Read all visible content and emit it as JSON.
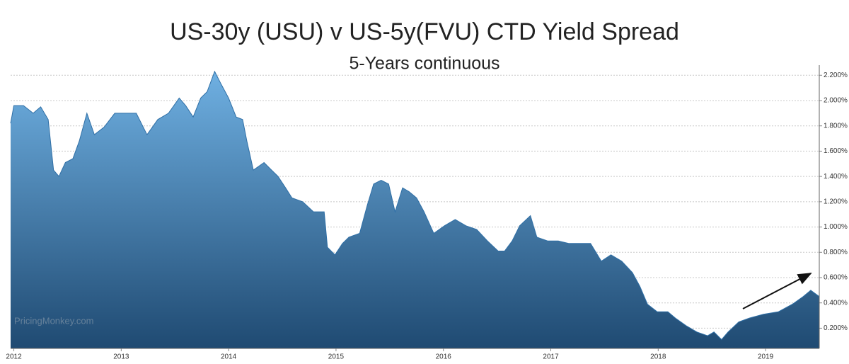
{
  "chart_data": {
    "type": "area",
    "title": "US-30y (USU) v US-5y(FVU) CTD Yield Spread",
    "subtitle": "5-Years continuous",
    "watermark": "PricingMonkey.com",
    "color": "#2f6fa6",
    "grid": true,
    "x": [
      2011.97,
      2012.0,
      2012.09,
      2012.18,
      2012.25,
      2012.32,
      2012.37,
      2012.42,
      2012.48,
      2012.55,
      2012.61,
      2012.68,
      2012.75,
      2012.84,
      2012.94,
      2013.04,
      2013.14,
      2013.24,
      2013.34,
      2013.44,
      2013.54,
      2013.6,
      2013.67,
      2013.74,
      2013.8,
      2013.87,
      2013.93,
      2014.0,
      2014.07,
      2014.13,
      2014.17,
      2014.23,
      2014.33,
      2014.4,
      2014.46,
      2014.53,
      2014.59,
      2014.69,
      2014.79,
      2014.89,
      2014.92,
      2014.99,
      2015.06,
      2015.12,
      2015.22,
      2015.29,
      2015.35,
      2015.42,
      2015.49,
      2015.55,
      2015.62,
      2015.68,
      2015.75,
      2015.82,
      2015.91,
      2016.01,
      2016.11,
      2016.21,
      2016.31,
      2016.41,
      2016.51,
      2016.57,
      2016.64,
      2016.71,
      2016.81,
      2016.87,
      2016.97,
      2017.07,
      2017.17,
      2017.27,
      2017.37,
      2017.47,
      2017.56,
      2017.66,
      2017.76,
      2017.83,
      2017.9,
      2017.99,
      2018.09,
      2018.16,
      2018.26,
      2018.36,
      2018.46,
      2018.52,
      2018.59,
      2018.65,
      2018.75,
      2018.85,
      2018.98,
      2019.12,
      2019.25,
      2019.35,
      2019.42,
      2019.5
    ],
    "values": [
      1.82,
      1.96,
      1.96,
      1.9,
      1.95,
      1.85,
      1.45,
      1.4,
      1.51,
      1.54,
      1.68,
      1.9,
      1.73,
      1.79,
      1.9,
      1.9,
      1.9,
      1.73,
      1.85,
      1.9,
      2.02,
      1.96,
      1.87,
      2.02,
      2.07,
      2.23,
      2.13,
      2.02,
      1.87,
      1.85,
      1.68,
      1.45,
      1.51,
      1.45,
      1.4,
      1.31,
      1.23,
      1.2,
      1.12,
      1.12,
      0.84,
      0.78,
      0.87,
      0.92,
      0.95,
      1.17,
      1.34,
      1.37,
      1.34,
      1.12,
      1.31,
      1.28,
      1.23,
      1.12,
      0.95,
      1.01,
      1.06,
      1.01,
      0.98,
      0.89,
      0.81,
      0.81,
      0.89,
      1.01,
      1.09,
      0.92,
      0.89,
      0.89,
      0.87,
      0.87,
      0.87,
      0.73,
      0.78,
      0.73,
      0.64,
      0.53,
      0.39,
      0.33,
      0.33,
      0.28,
      0.22,
      0.17,
      0.14,
      0.17,
      0.11,
      0.17,
      0.25,
      0.28,
      0.31,
      0.33,
      0.39,
      0.45,
      0.5,
      0.45
    ],
    "xlim": [
      2011.97,
      2019.5
    ],
    "xticks": [
      2012,
      2013,
      2014,
      2015,
      2016,
      2017,
      2018,
      2019
    ],
    "ylim": [
      0.04,
      2.28
    ],
    "yticks": [
      {
        "value": 0.2,
        "label": "0.200%"
      },
      {
        "value": 0.4,
        "label": "0.400%"
      },
      {
        "value": 0.6,
        "label": "0.600%"
      },
      {
        "value": 0.8,
        "label": "0.800%"
      },
      {
        "value": 1.0,
        "label": "1.000%"
      },
      {
        "value": 1.2,
        "label": "1.200%"
      },
      {
        "value": 1.4,
        "label": "1.400%"
      },
      {
        "value": 1.6,
        "label": "1.600%"
      },
      {
        "value": 1.8,
        "label": "1.800%"
      },
      {
        "value": 2.0,
        "label": "2.000%"
      },
      {
        "value": 2.2,
        "label": "2.200%"
      }
    ]
  }
}
